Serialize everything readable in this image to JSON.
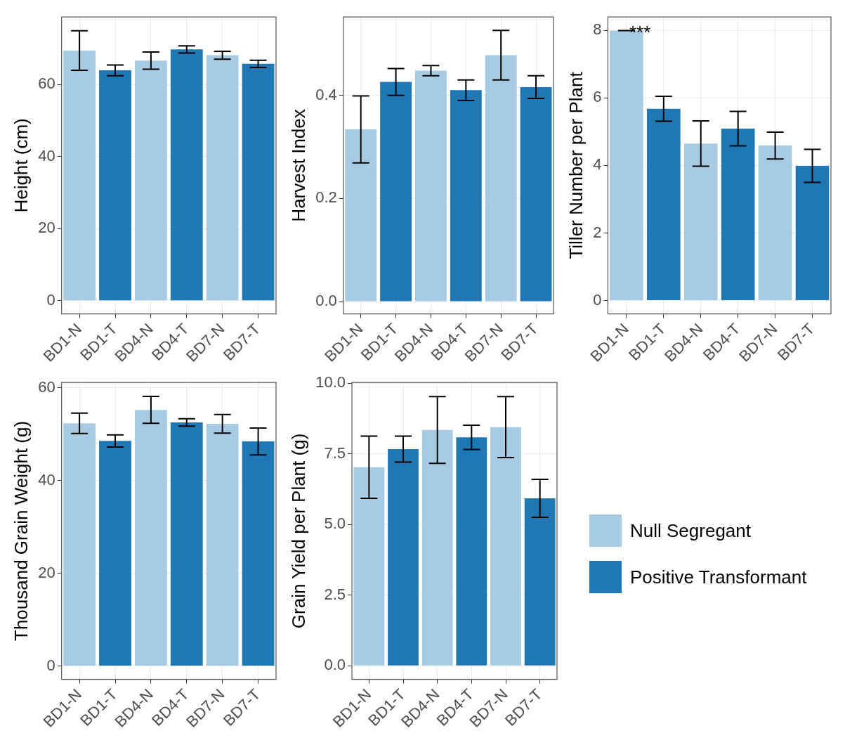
{
  "chart_data": [
    {
      "type": "bar",
      "ylabel": "Height (cm)",
      "categories": [
        "BD1-N",
        "BD1-T",
        "BD4-N",
        "BD4-T",
        "BD7-N",
        "BD7-T"
      ],
      "ylim": [
        -3.7,
        78.7
      ],
      "yticks": [
        0,
        20,
        40,
        60
      ],
      "grid": true,
      "series": [
        {
          "color": "#a6cbe3",
          "values": [
            69.4,
            null,
            66.6,
            null,
            68.1,
            null
          ],
          "errors": [
            5.5,
            null,
            2.4,
            null,
            1.1,
            null
          ]
        },
        {
          "color": "#1f78b4",
          "values": [
            null,
            63.9,
            null,
            69.7,
            null,
            65.7
          ],
          "errors": [
            null,
            1.5,
            null,
            1.0,
            null,
            1.0
          ]
        }
      ]
    },
    {
      "type": "bar",
      "ylabel": "Harvest Index",
      "categories": [
        "BD1-N",
        "BD1-T",
        "BD4-N",
        "BD4-T",
        "BD7-N",
        "BD7-T"
      ],
      "ylim": [
        -0.024,
        0.552
      ],
      "yticks": [
        {
          "value": 0,
          "label": "0.0"
        },
        0.2,
        0.4
      ],
      "grid": true,
      "series": [
        {
          "color": "#a6cbe3",
          "values": [
            0.334,
            null,
            0.448,
            null,
            0.478,
            null
          ],
          "errors": [
            0.065,
            null,
            0.01,
            null,
            0.048,
            null
          ]
        },
        {
          "color": "#1f78b4",
          "values": [
            null,
            0.426,
            null,
            0.41,
            null,
            0.416
          ],
          "errors": [
            null,
            0.026,
            null,
            0.02,
            null,
            0.022
          ]
        }
      ]
    },
    {
      "type": "bar",
      "ylabel": "Tiller Number per Plant",
      "categories": [
        "BD1-N",
        "BD1-T",
        "BD4-N",
        "BD4-T",
        "BD7-N",
        "BD7-T"
      ],
      "ylim": [
        -0.4,
        8.4
      ],
      "yticks": [
        0,
        2,
        4,
        6,
        8
      ],
      "grid": true,
      "annotations": [
        {
          "text": "***",
          "x": "BD1-N",
          "y": 8
        }
      ],
      "series": [
        {
          "color": "#a6cbe3",
          "values": [
            8.0,
            null,
            4.65,
            null,
            4.59,
            null
          ],
          "errors": [
            0,
            null,
            0.67,
            null,
            0.4,
            null
          ]
        },
        {
          "color": "#1f78b4",
          "values": [
            null,
            5.68,
            null,
            5.09,
            null,
            3.99
          ],
          "errors": [
            null,
            0.37,
            null,
            0.51,
            null,
            0.49
          ]
        }
      ]
    },
    {
      "type": "bar",
      "ylabel": "Thousand Grain Weight (g)",
      "categories": [
        "BD1-N",
        "BD1-T",
        "BD4-N",
        "BD4-T",
        "BD7-N",
        "BD7-T"
      ],
      "ylim": [
        -2.9,
        61.1
      ],
      "yticks": [
        0,
        20,
        40,
        60
      ],
      "grid": true,
      "series": [
        {
          "color": "#a6cbe3",
          "values": [
            52.3,
            null,
            55.2,
            null,
            52.2,
            null
          ],
          "errors": [
            2.2,
            null,
            2.9,
            null,
            2.0,
            null
          ]
        },
        {
          "color": "#1f78b4",
          "values": [
            null,
            48.5,
            null,
            52.5,
            null,
            48.4
          ],
          "errors": [
            null,
            1.3,
            null,
            0.8,
            null,
            2.9
          ]
        }
      ]
    },
    {
      "type": "bar",
      "ylabel": "Grain Yield per Plant (g)",
      "categories": [
        "BD1-N",
        "BD1-T",
        "BD4-N",
        "BD4-T",
        "BD7-N",
        "BD7-T"
      ],
      "ylim": [
        -0.48,
        10.03
      ],
      "yticks": [
        {
          "value": 0,
          "label": "0.0"
        },
        2.5,
        {
          "value": 5,
          "label": "5.0"
        },
        7.5,
        {
          "value": 10,
          "label": "10.0"
        }
      ],
      "grid": true,
      "legend": "right",
      "series": [
        {
          "name": "Null Segregant",
          "color": "#a6cbe3",
          "values": [
            7.03,
            null,
            8.35,
            null,
            8.45,
            null
          ],
          "errors": [
            1.1,
            null,
            1.18,
            null,
            1.08,
            null
          ]
        },
        {
          "name": "Positive Transformant",
          "color": "#1f78b4",
          "values": [
            null,
            7.67,
            null,
            8.09,
            null,
            5.93
          ],
          "errors": [
            null,
            0.46,
            null,
            0.43,
            null,
            0.67
          ]
        }
      ]
    }
  ]
}
